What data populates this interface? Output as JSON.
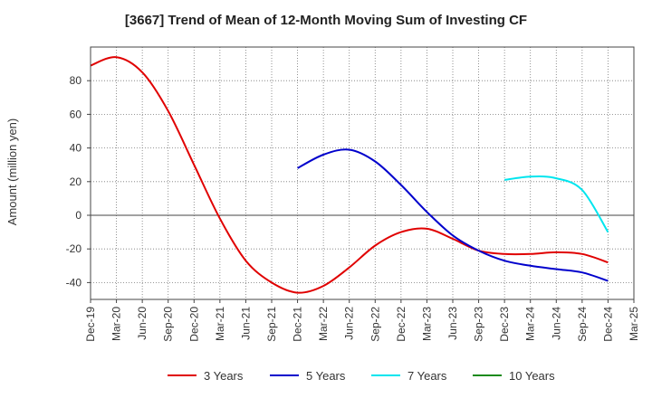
{
  "chart_data": {
    "type": "line",
    "title": "[3667]  Trend of Mean of 12-Month Moving Sum of Investing CF",
    "xlabel": "",
    "ylabel": "Amount (million yen)",
    "ylim": [
      -50,
      100
    ],
    "yticks": [
      -40,
      -20,
      0,
      20,
      40,
      60,
      80
    ],
    "grid": true,
    "legend_position": "bottom",
    "categories": [
      "Dec-19",
      "Mar-20",
      "Jun-20",
      "Sep-20",
      "Dec-20",
      "Mar-21",
      "Jun-21",
      "Sep-21",
      "Dec-21",
      "Mar-22",
      "Jun-22",
      "Sep-22",
      "Dec-22",
      "Mar-23",
      "Jun-23",
      "Sep-23",
      "Dec-23",
      "Mar-24",
      "Jun-24",
      "Sep-24",
      "Dec-24",
      "Mar-25"
    ],
    "series": [
      {
        "name": "3 Years",
        "color": "#e00000",
        "values": [
          89,
          94,
          85,
          62,
          30,
          -2,
          -27,
          -40,
          -46,
          -42,
          -31,
          -18,
          -10,
          -8,
          -14,
          -21,
          -23,
          -23,
          -22,
          -23,
          -28,
          null
        ]
      },
      {
        "name": "5 Years",
        "color": "#0000cc",
        "values": [
          null,
          null,
          null,
          null,
          null,
          null,
          null,
          null,
          28,
          36,
          39,
          32,
          18,
          2,
          -12,
          -21,
          -27,
          -30,
          -32,
          -34,
          -39,
          null
        ]
      },
      {
        "name": "7 Years",
        "color": "#00e5ee",
        "values": [
          null,
          null,
          null,
          null,
          null,
          null,
          null,
          null,
          null,
          null,
          null,
          null,
          null,
          null,
          null,
          null,
          21,
          23,
          22,
          15,
          -10,
          null
        ]
      },
      {
        "name": "10 Years",
        "color": "#1a8a1a",
        "values": [
          null,
          null,
          null,
          null,
          null,
          null,
          null,
          null,
          null,
          null,
          null,
          null,
          null,
          null,
          null,
          null,
          null,
          null,
          null,
          null,
          null,
          null
        ]
      }
    ]
  }
}
